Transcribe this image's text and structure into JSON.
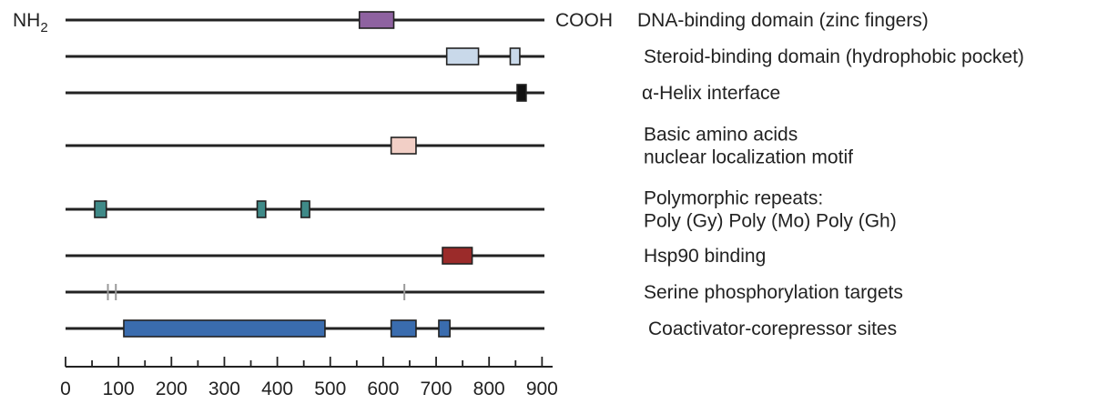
{
  "terminals": {
    "n": "NH",
    "n_sub": "2",
    "c": "COOH"
  },
  "axis": {
    "min": 0,
    "max": 920,
    "major_step": 100,
    "minor_step": 50,
    "tick_labels": [
      "0",
      "100",
      "200",
      "300",
      "400",
      "500",
      "600",
      "700",
      "800",
      "900"
    ]
  },
  "tracks": [
    {
      "id": "dna",
      "label_lines": [
        "DNA-binding domain (zinc fingers)"
      ],
      "features": [
        {
          "type": "box",
          "start": 555,
          "end": 620,
          "color": "#8e62a0"
        }
      ]
    },
    {
      "id": "steroid",
      "label_lines": [
        "Steroid-binding domain (hydrophobic pocket)"
      ],
      "features": [
        {
          "type": "box",
          "start": 720,
          "end": 780,
          "color": "#c9d9ea"
        },
        {
          "type": "box",
          "start": 840,
          "end": 858,
          "color": "#c9d9ea"
        }
      ]
    },
    {
      "id": "helix",
      "label_lines": [
        "α-Helix interface"
      ],
      "features": [
        {
          "type": "box",
          "start": 853,
          "end": 870,
          "color": "#111111"
        }
      ]
    },
    {
      "id": "basic",
      "label_lines": [
        "Basic amino acids",
        "nuclear localization motif"
      ],
      "features": [
        {
          "type": "box",
          "start": 615,
          "end": 662,
          "color": "#f2cfc6"
        }
      ]
    },
    {
      "id": "poly",
      "label_lines": [
        "Polymorphic repeats:",
        "Poly (Gy) Poly (Mo) Poly (Gh)"
      ],
      "features": [
        {
          "type": "box",
          "start": 55,
          "end": 77,
          "color": "#3f8a88"
        },
        {
          "type": "box",
          "start": 362,
          "end": 378,
          "color": "#3f8a88"
        },
        {
          "type": "box",
          "start": 445,
          "end": 461,
          "color": "#3f8a88"
        }
      ]
    },
    {
      "id": "hsp90",
      "label_lines": [
        "Hsp90 binding"
      ],
      "features": [
        {
          "type": "box",
          "start": 712,
          "end": 768,
          "color": "#9b2b2a"
        }
      ]
    },
    {
      "id": "serine",
      "label_lines": [
        "Serine phosphorylation targets"
      ],
      "features": [
        {
          "type": "tick",
          "pos": 80,
          "color": "#9a9a9a"
        },
        {
          "type": "tick",
          "pos": 95,
          "color": "#9a9a9a"
        },
        {
          "type": "tick",
          "pos": 640,
          "color": "#9a9a9a"
        }
      ]
    },
    {
      "id": "coact",
      "label_lines": [
        "Coactivator-corepressor sites"
      ],
      "features": [
        {
          "type": "box",
          "start": 110,
          "end": 490,
          "color": "#3a6cae"
        },
        {
          "type": "box",
          "start": 615,
          "end": 662,
          "color": "#3a6cae"
        },
        {
          "type": "box",
          "start": 705,
          "end": 726,
          "color": "#3a6cae"
        }
      ]
    }
  ]
}
